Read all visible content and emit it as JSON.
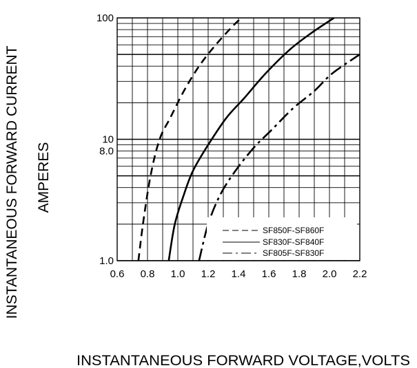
{
  "chart_data": {
    "type": "line",
    "xlabel": "INSTANTANEOUS FORWARD VOLTAGE,VOLTS",
    "ylabel": "INSTANTANEOUS FORWARD CURRENT",
    "ylabel_line2": "AMPERES",
    "x_scale": "linear",
    "y_scale": "log",
    "xlim": [
      0.6,
      2.2
    ],
    "ylim": [
      1.0,
      100
    ],
    "x_ticks": [
      "0.6",
      "0.8",
      "1.0",
      "1.2",
      "1.4",
      "1.6",
      "1.8",
      "2.0",
      "2.2"
    ],
    "y_ticks": [
      {
        "value": 1.0,
        "label": "1.0"
      },
      {
        "value": 8.0,
        "label": "8.0"
      },
      {
        "value": 10,
        "label": "10"
      },
      {
        "value": 100,
        "label": "100"
      }
    ],
    "grid": true,
    "legend_position": "bottom-right",
    "series": [
      {
        "name": "SF850F-SF860F",
        "dash": "dashed",
        "points": [
          [
            0.74,
            1.0
          ],
          [
            0.77,
            2.0
          ],
          [
            0.82,
            5.0
          ],
          [
            0.88,
            10
          ],
          [
            0.95,
            15
          ],
          [
            1.04,
            25
          ],
          [
            1.14,
            40
          ],
          [
            1.25,
            60
          ],
          [
            1.36,
            85
          ],
          [
            1.42,
            100
          ]
        ]
      },
      {
        "name": "SF830F-SF840F",
        "dash": "solid",
        "points": [
          [
            0.94,
            1.0
          ],
          [
            0.98,
            2.0
          ],
          [
            1.04,
            3.5
          ],
          [
            1.1,
            5.5
          ],
          [
            1.2,
            9.0
          ],
          [
            1.32,
            15
          ],
          [
            1.44,
            22
          ],
          [
            1.58,
            35
          ],
          [
            1.74,
            55
          ],
          [
            1.88,
            75
          ],
          [
            2.03,
            100
          ]
        ]
      },
      {
        "name": "SF805F-SF830F",
        "dash": "dashdot",
        "points": [
          [
            1.14,
            1.0
          ],
          [
            1.2,
            2.0
          ],
          [
            1.28,
            3.5
          ],
          [
            1.38,
            5.5
          ],
          [
            1.5,
            8.5
          ],
          [
            1.62,
            12
          ],
          [
            1.76,
            18
          ],
          [
            1.9,
            25
          ],
          [
            2.02,
            35
          ],
          [
            2.2,
            50
          ]
        ]
      }
    ]
  }
}
